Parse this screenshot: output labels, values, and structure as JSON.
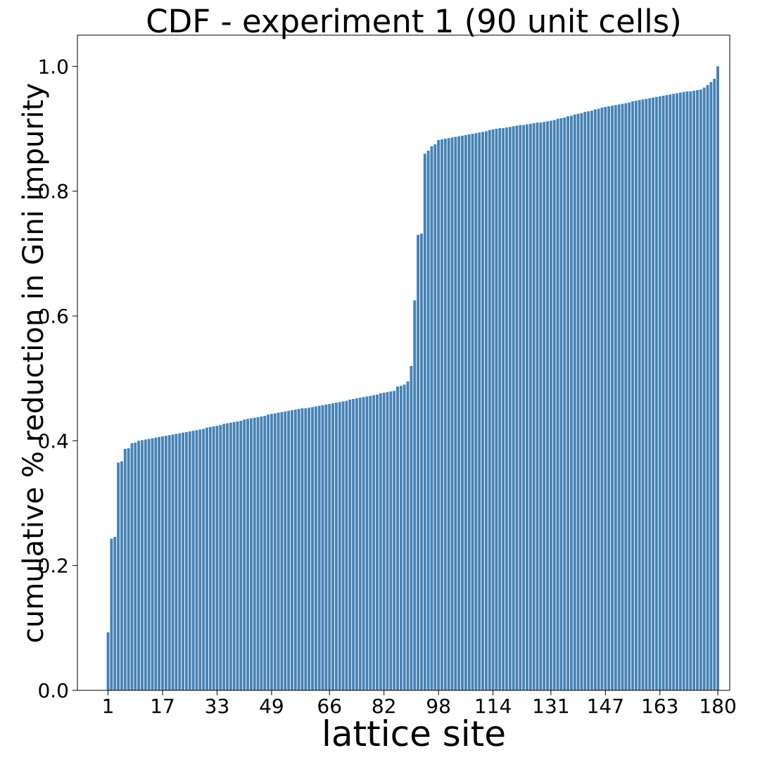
{
  "chart_data": {
    "type": "bar",
    "title": "CDF - experiment 1 (90 unit cells)",
    "xlabel": "lattice site",
    "ylabel": "cumulative % reduction in Gini impurity",
    "color": "#4682b4",
    "bar_width": 0.8,
    "x": [
      1,
      2,
      3,
      4,
      5,
      6,
      7,
      8,
      9,
      10,
      11,
      12,
      13,
      14,
      15,
      16,
      17,
      18,
      19,
      20,
      21,
      22,
      23,
      24,
      25,
      26,
      27,
      28,
      29,
      30,
      31,
      32,
      33,
      34,
      35,
      36,
      37,
      38,
      39,
      40,
      41,
      42,
      43,
      44,
      45,
      46,
      47,
      48,
      49,
      50,
      51,
      52,
      53,
      54,
      55,
      56,
      57,
      58,
      59,
      60,
      61,
      62,
      63,
      64,
      65,
      66,
      67,
      68,
      69,
      70,
      71,
      72,
      73,
      74,
      75,
      76,
      77,
      78,
      79,
      80,
      81,
      82,
      83,
      84,
      85,
      86,
      87,
      88,
      89,
      90,
      91,
      92,
      93,
      94,
      95,
      96,
      97,
      98,
      99,
      100,
      101,
      102,
      103,
      104,
      105,
      106,
      107,
      108,
      109,
      110,
      111,
      112,
      113,
      114,
      115,
      116,
      117,
      118,
      119,
      120,
      121,
      122,
      123,
      124,
      125,
      126,
      127,
      128,
      129,
      130,
      131,
      132,
      133,
      134,
      135,
      136,
      137,
      138,
      139,
      140,
      141,
      142,
      143,
      144,
      145,
      146,
      147,
      148,
      149,
      150,
      151,
      152,
      153,
      154,
      155,
      156,
      157,
      158,
      159,
      160,
      161,
      162,
      163,
      164,
      165,
      166,
      167,
      168,
      169,
      170,
      171,
      172,
      173,
      174,
      175,
      176,
      177,
      178,
      179,
      180
    ],
    "values": [
      0.093,
      0.243,
      0.246,
      0.365,
      0.367,
      0.387,
      0.388,
      0.396,
      0.397,
      0.4,
      0.401,
      0.402,
      0.403,
      0.404,
      0.405,
      0.406,
      0.407,
      0.408,
      0.409,
      0.41,
      0.411,
      0.412,
      0.413,
      0.414,
      0.415,
      0.416,
      0.417,
      0.418,
      0.419,
      0.421,
      0.422,
      0.423,
      0.424,
      0.425,
      0.427,
      0.428,
      0.429,
      0.43,
      0.431,
      0.432,
      0.434,
      0.435,
      0.436,
      0.437,
      0.438,
      0.439,
      0.44,
      0.442,
      0.443,
      0.444,
      0.445,
      0.446,
      0.447,
      0.448,
      0.449,
      0.45,
      0.451,
      0.452,
      0.452,
      0.453,
      0.454,
      0.455,
      0.456,
      0.457,
      0.458,
      0.459,
      0.46,
      0.461,
      0.462,
      0.463,
      0.464,
      0.466,
      0.467,
      0.468,
      0.469,
      0.47,
      0.471,
      0.472,
      0.473,
      0.474,
      0.476,
      0.477,
      0.478,
      0.479,
      0.48,
      0.487,
      0.488,
      0.49,
      0.495,
      0.52,
      0.625,
      0.73,
      0.732,
      0.86,
      0.865,
      0.872,
      0.875,
      0.882,
      0.883,
      0.884,
      0.885,
      0.886,
      0.887,
      0.888,
      0.889,
      0.89,
      0.891,
      0.892,
      0.893,
      0.894,
      0.895,
      0.896,
      0.898,
      0.899,
      0.9,
      0.901,
      0.901,
      0.902,
      0.903,
      0.904,
      0.905,
      0.906,
      0.906,
      0.907,
      0.908,
      0.909,
      0.91,
      0.91,
      0.911,
      0.912,
      0.913,
      0.914,
      0.916,
      0.917,
      0.918,
      0.92,
      0.921,
      0.923,
      0.924,
      0.925,
      0.927,
      0.928,
      0.929,
      0.931,
      0.932,
      0.934,
      0.935,
      0.936,
      0.937,
      0.938,
      0.939,
      0.94,
      0.941,
      0.942,
      0.944,
      0.945,
      0.946,
      0.947,
      0.948,
      0.949,
      0.95,
      0.951,
      0.952,
      0.953,
      0.954,
      0.955,
      0.956,
      0.957,
      0.958,
      0.959,
      0.96,
      0.96,
      0.961,
      0.962,
      0.963,
      0.966,
      0.97,
      0.975,
      0.98,
      1.0
    ],
    "xlim": [
      -8,
      183.5
    ],
    "xticks": [
      1,
      17,
      33,
      49,
      66,
      82,
      98,
      114,
      131,
      147,
      163,
      180
    ],
    "ylim": [
      0,
      1.05
    ],
    "yticks": [
      {
        "value": 0,
        "label": "0.0"
      },
      0.2,
      0.4,
      0.6,
      0.8,
      {
        "value": 1,
        "label": "1.0"
      }
    ]
  }
}
